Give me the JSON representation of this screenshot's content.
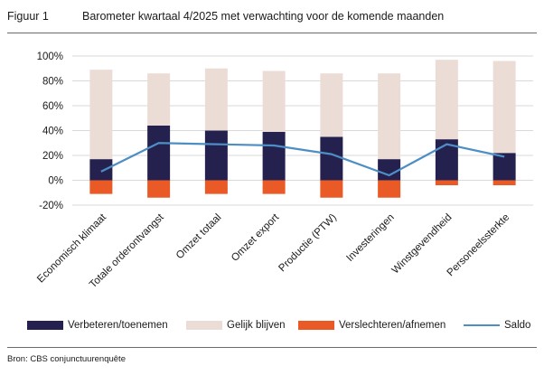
{
  "figure": {
    "label": "Figuur 1",
    "title": "Barometer kwartaal 4/2025 met verwachting voor de komende maanden",
    "source": "Bron: CBS conjunctuurenquête"
  },
  "colors": {
    "improve": "#25214f",
    "same": "#ecdcd6",
    "worse": "#ea5a26",
    "saldo": "#4d8fc4",
    "grid": "#d9d9d9"
  },
  "chart_data": {
    "type": "bar",
    "stacked": true,
    "categories": [
      "Economisch klimaat",
      "Totale orderontvangst",
      "Omzet totaal",
      "Omzet export",
      "Productie (PTW)",
      "Investeringen",
      "Winstgevendheid",
      "Personeelssterkte"
    ],
    "series": [
      {
        "name": "Verbeteren/toenemen",
        "kind": "bar",
        "values": [
          17,
          44,
          40,
          39,
          35,
          17,
          33,
          22
        ]
      },
      {
        "name": "Gelijk blijven",
        "kind": "bar",
        "values": [
          72,
          42,
          50,
          49,
          51,
          69,
          64,
          74
        ]
      },
      {
        "name": "Verslechteren/afnemen",
        "kind": "bar",
        "values": [
          -11,
          -14,
          -11,
          -11,
          -14,
          -14,
          -4,
          -4
        ]
      },
      {
        "name": "Saldo",
        "kind": "line",
        "values": [
          7,
          30,
          29,
          28,
          21,
          4,
          29,
          19
        ]
      }
    ],
    "y_ticks": [
      "100%",
      "80%",
      "60%",
      "40%",
      "20%",
      "0%",
      "-20%"
    ],
    "y_tick_values": [
      100,
      80,
      60,
      40,
      20,
      0,
      -20
    ],
    "ylim": [
      -20,
      100
    ],
    "grid": true,
    "legend_position": "bottom"
  }
}
